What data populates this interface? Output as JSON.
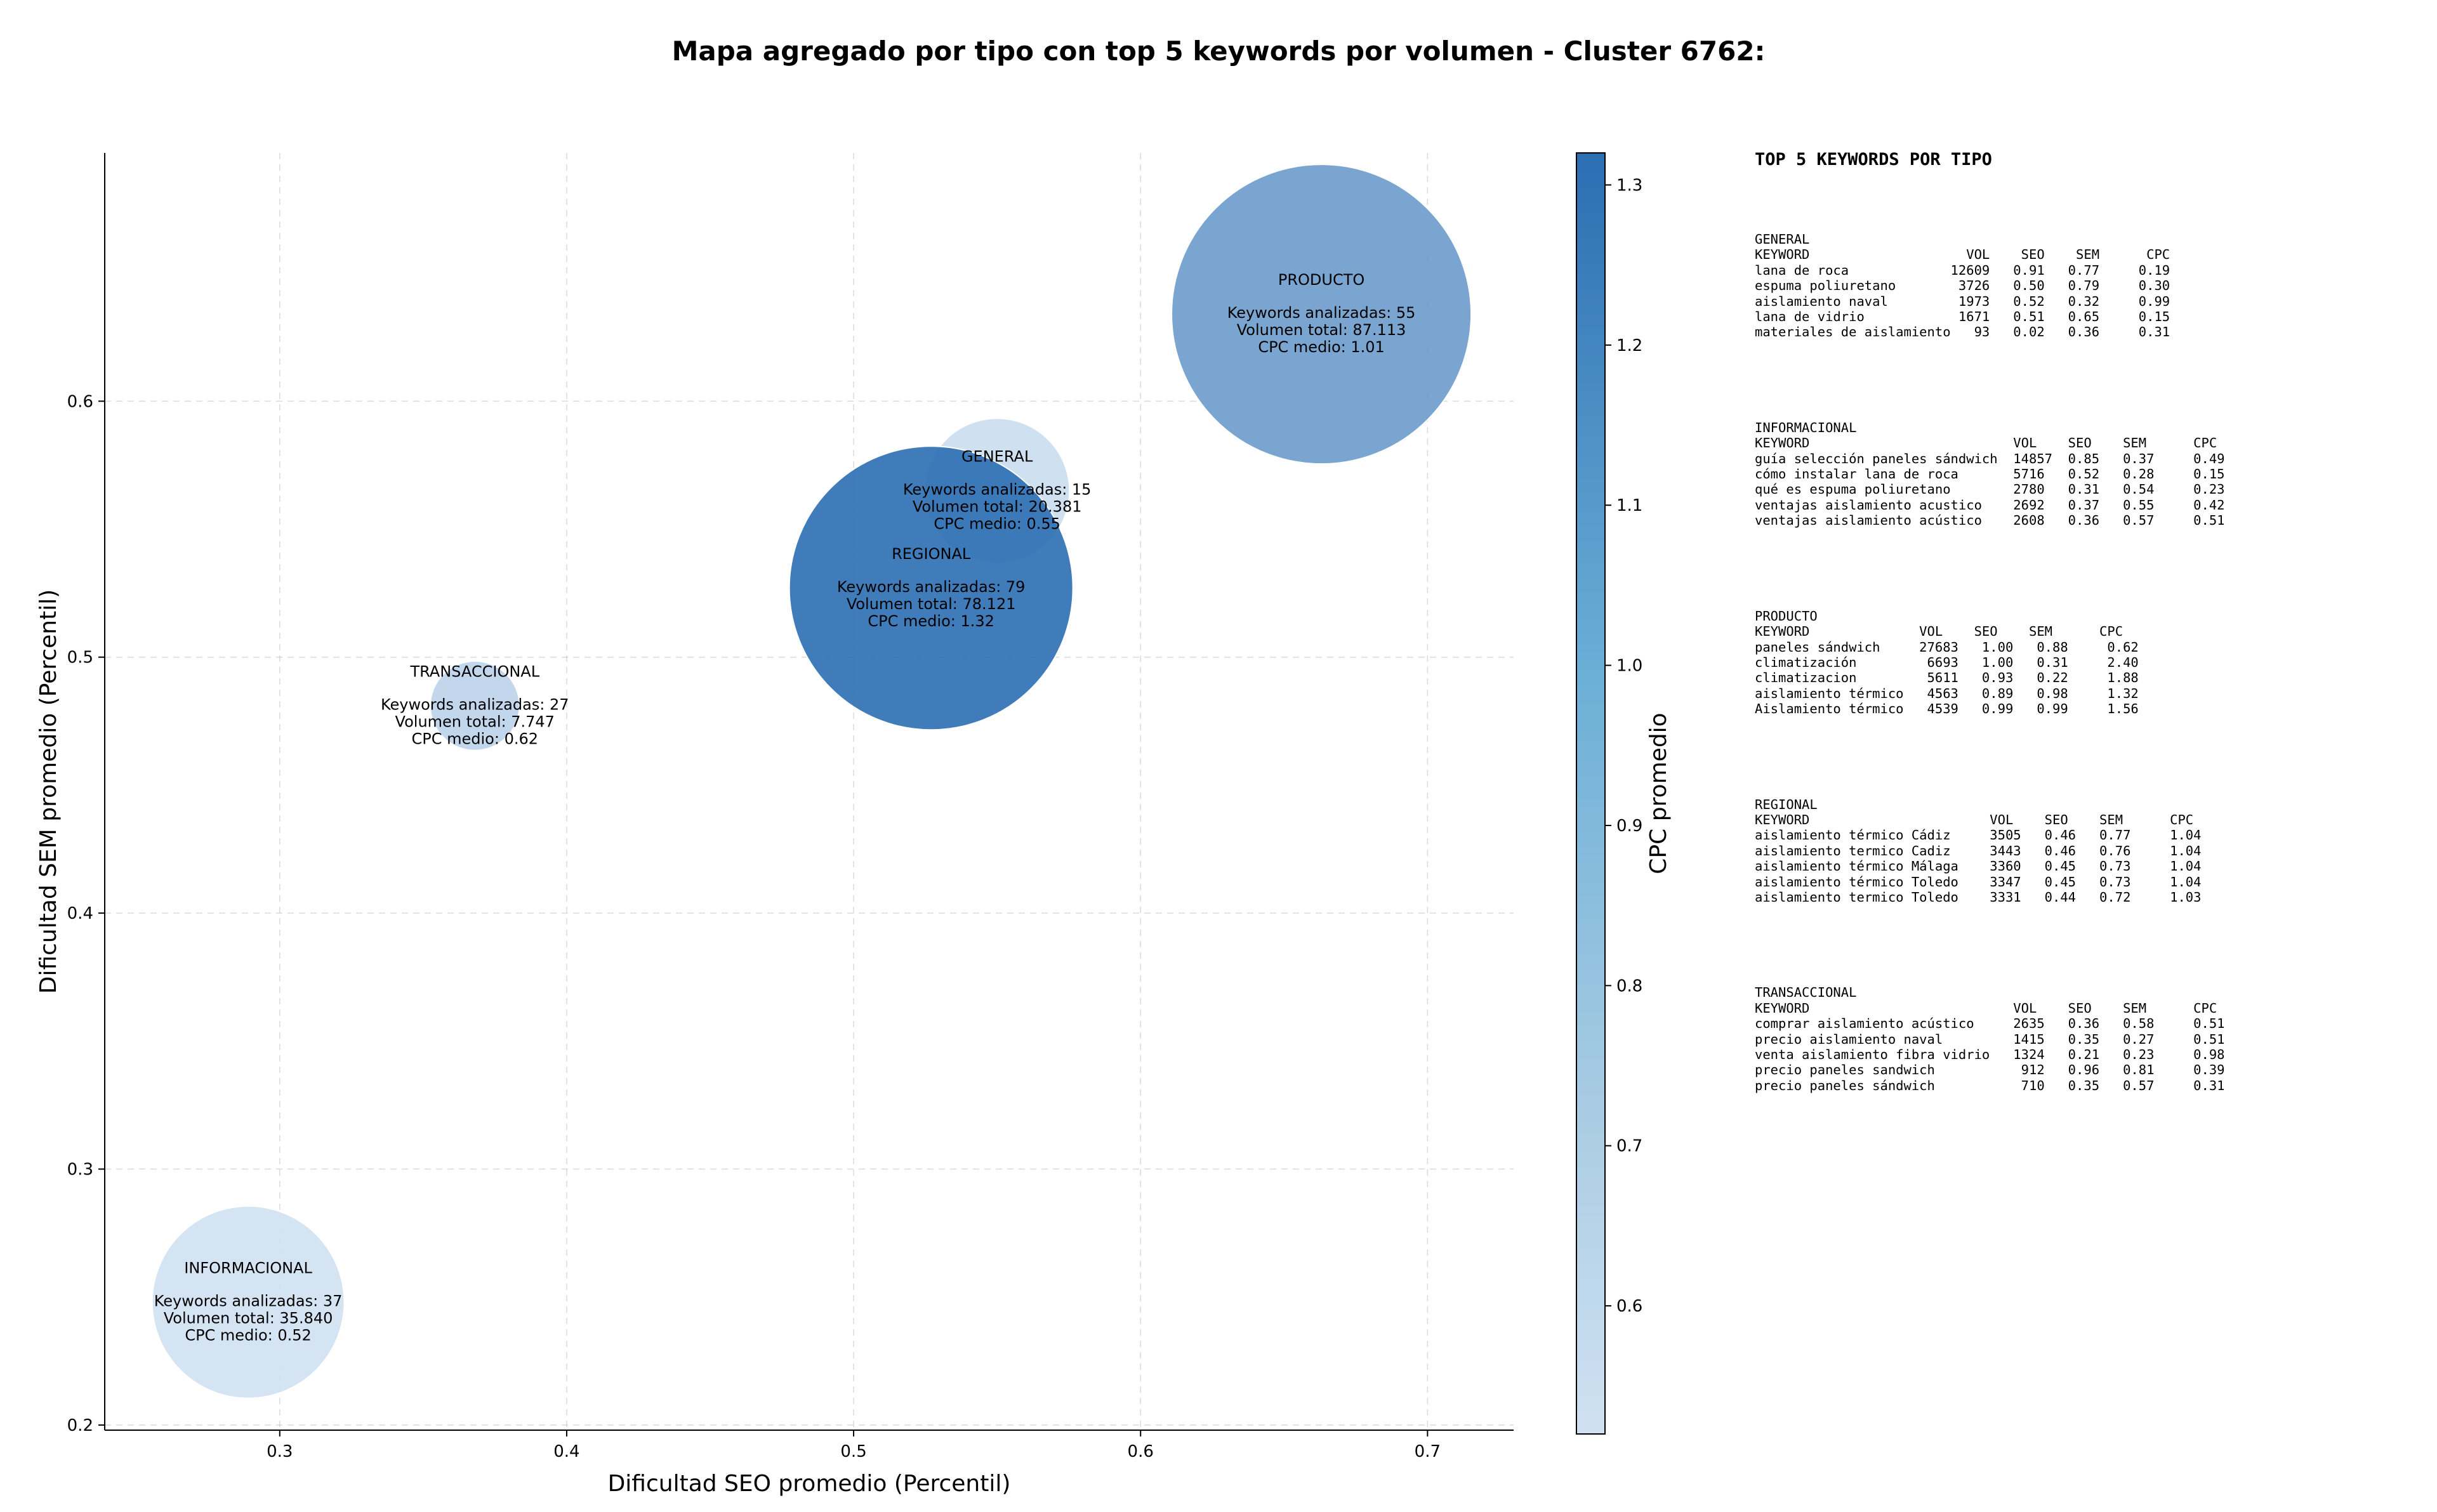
{
  "chart_data": {
    "type": "scatter",
    "title": "Mapa agregado por tipo con top 5 keywords por volumen - Cluster 6762:",
    "xlabel": "Dificultad SEO promedio (Percentil)",
    "ylabel": "Dificultad SEM promedio (Percentil)",
    "xlim": [
      0.239,
      0.73
    ],
    "ylim": [
      0.198,
      0.697
    ],
    "xticks": [
      "0.3",
      "0.4",
      "0.5",
      "0.6",
      "0.7"
    ],
    "yticks": [
      "0.2",
      "0.3",
      "0.4",
      "0.5",
      "0.6"
    ],
    "grid": true,
    "colorbar": {
      "label": "CPC promedio",
      "min": 0.52,
      "max": 1.32,
      "ticks": [
        "0.6",
        "0.7",
        "0.8",
        "0.9",
        "1.0",
        "1.1",
        "1.2",
        "1.3"
      ],
      "color_low": "#d0e1f2",
      "color_high": "#2b6eb2"
    },
    "points": [
      {
        "label": "INFORMACIONAL",
        "x": 0.289,
        "y": 0.248,
        "keywords": "Keywords analizadas: 37",
        "volume_text": "Volumen total: 35.840",
        "cpc_text": "CPC medio: 0.52",
        "volume": 35840,
        "cpc": 0.52
      },
      {
        "label": "TRANSACCIONAL",
        "x": 0.368,
        "y": 0.481,
        "keywords": "Keywords analizadas: 27",
        "volume_text": "Volumen total: 7.747",
        "cpc_text": "CPC medio: 0.62",
        "volume": 7747,
        "cpc": 0.62
      },
      {
        "label": "GENERAL",
        "x": 0.55,
        "y": 0.565,
        "keywords": "Keywords analizadas: 15",
        "volume_text": "Volumen total: 20.381",
        "cpc_text": "CPC medio: 0.55",
        "volume": 20381,
        "cpc": 0.55
      },
      {
        "label": "REGIONAL",
        "x": 0.527,
        "y": 0.527,
        "keywords": "Keywords analizadas: 79",
        "volume_text": "Volumen total: 78.121",
        "cpc_text": "CPC medio: 1.32",
        "volume": 78121,
        "cpc": 1.32
      },
      {
        "label": "PRODUCTO",
        "x": 0.663,
        "y": 0.634,
        "keywords": "Keywords analizadas: 55",
        "volume_text": "Volumen total: 87.113",
        "cpc_text": "CPC medio: 1.01",
        "volume": 87113,
        "cpc": 1.01
      }
    ]
  },
  "keyword_tables": {
    "heading": "TOP 5 KEYWORDS POR TIPO",
    "tables": [
      {
        "text": "GENERAL\nKEYWORD                    VOL    SEO    SEM      CPC\nlana de roca             12609   0.91   0.77     0.19\nespuma poliuretano        3726   0.50   0.79     0.30\naislamiento naval         1973   0.52   0.32     0.99\nlana de vidrio            1671   0.51   0.65     0.15\nmateriales de aislamiento   93   0.02   0.36     0.31"
      },
      {
        "text": "INFORMACIONAL\nKEYWORD                          VOL    SEO    SEM      CPC\nguía selección paneles sándwich  14857  0.85   0.37     0.49\ncómo instalar lana de roca       5716   0.52   0.28     0.15\nqué es espuma poliuretano        2780   0.31   0.54     0.23\nventajas aislamiento acustico    2692   0.37   0.55     0.42\nventajas aislamiento acústico    2608   0.36   0.57     0.51"
      },
      {
        "text": "PRODUCTO\nKEYWORD              VOL    SEO    SEM      CPC\npaneles sándwich     27683   1.00   0.88     0.62\nclimatización         6693   1.00   0.31     2.40\nclimatizacion         5611   0.93   0.22     1.88\naislamiento térmico   4563   0.89   0.98     1.32\nAislamiento térmico   4539   0.99   0.99     1.56"
      },
      {
        "text": "REGIONAL\nKEYWORD                       VOL    SEO    SEM      CPC\naislamiento térmico Cádiz     3505   0.46   0.77     1.04\naislamiento termico Cadiz     3443   0.46   0.76     1.04\naislamiento térmico Málaga    3360   0.45   0.73     1.04\naislamiento térmico Toledo    3347   0.45   0.73     1.04\naislamiento termico Toledo    3331   0.44   0.72     1.03"
      },
      {
        "text": "TRANSACCIONAL\nKEYWORD                          VOL    SEO    SEM      CPC\ncomprar aislamiento acústico     2635   0.36   0.58     0.51\nprecio aislamiento naval         1415   0.35   0.27     0.51\nventa aislamiento fibra vidrio   1324   0.21   0.23     0.98\nprecio paneles sandwich           912   0.96   0.81     0.39\nprecio paneles sándwich           710   0.35   0.57     0.31"
      }
    ]
  }
}
